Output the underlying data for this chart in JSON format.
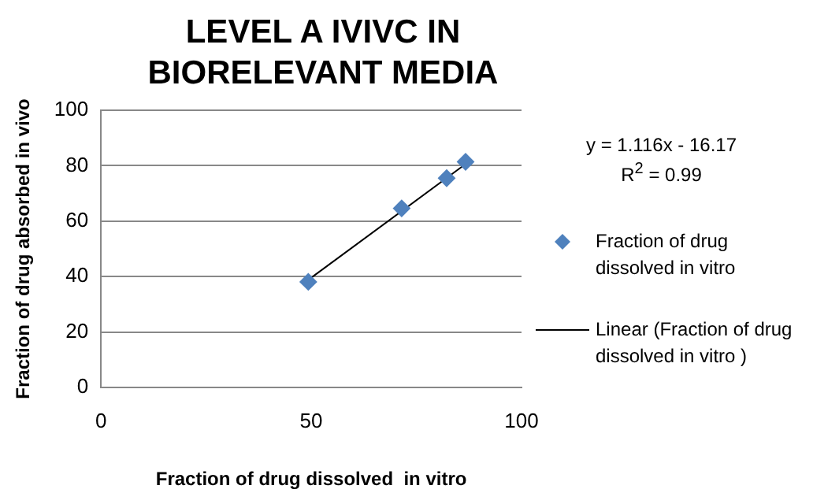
{
  "chart_data": {
    "type": "scatter",
    "title": "LEVEL A IVIVC IN BIORELEVANT MEDIA",
    "xlabel": "Fraction of drug dissolved  in vitro",
    "ylabel": "Fraction of drug absorbed in vivo",
    "annotations": [
      "y = 1.116x - 16.17",
      "R$^{2}$ = 0.99"
    ],
    "series": [
      {
        "name": "Fraction of drug dissolved in vitro",
        "color": "#4f81bd",
        "x": [
          49.3,
          71.5,
          82.2,
          86.7
        ],
        "values": [
          38.1,
          64.6,
          75.5,
          81.4
        ],
        "marker": "diamond"
      },
      {
        "name": "Linear (Fraction of drug dissolved in vitro )",
        "type": "line",
        "color": "#000000",
        "x": [
          49.3,
          86.7
        ],
        "values": [
          38.8,
          80.6
        ],
        "marker": "none"
      }
    ],
    "xlim": [
      0,
      100
    ],
    "xticks": [
      0,
      50,
      100
    ],
    "ylim": [
      0,
      100
    ],
    "yticks": [
      0,
      20,
      40,
      60,
      80,
      100
    ],
    "grid": "y",
    "legend": "right"
  }
}
